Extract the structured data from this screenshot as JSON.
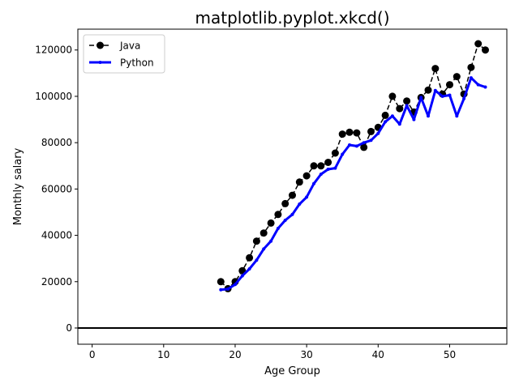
{
  "chart_data": {
    "type": "line",
    "title": "matplotlib.pyplot.xkcd()",
    "xlabel": "Age Group",
    "ylabel": "Monthly salary",
    "xlim": [
      -2,
      58
    ],
    "ylim": [
      -7000,
      129000
    ],
    "xticks": [
      0,
      10,
      20,
      30,
      40,
      50
    ],
    "yticks": [
      0,
      20000,
      40000,
      60000,
      80000,
      100000,
      120000
    ],
    "grid": false,
    "legend_position": "top-left",
    "x": [
      18,
      19,
      20,
      21,
      22,
      23,
      24,
      25,
      26,
      27,
      28,
      29,
      30,
      31,
      32,
      33,
      34,
      35,
      36,
      37,
      38,
      39,
      40,
      41,
      42,
      43,
      44,
      45,
      46,
      47,
      48,
      49,
      50,
      51,
      52,
      53,
      54,
      55
    ],
    "series": [
      {
        "name": "Java",
        "color": "#000000",
        "line_style": "dashed",
        "marker": "circle",
        "values": [
          20000,
          17000,
          20000,
          24700,
          30300,
          37500,
          41000,
          45300,
          49000,
          53700,
          57300,
          63000,
          65700,
          70000,
          70000,
          71500,
          75500,
          83700,
          84500,
          84200,
          78000,
          84800,
          86600,
          91800,
          100000,
          94700,
          98000,
          93200,
          99500,
          102700,
          112000,
          101000,
          105000,
          108500,
          101000,
          112500,
          122700,
          120000
        ]
      },
      {
        "name": "Python",
        "color": "#0000ff",
        "line_style": "solid",
        "marker": "small-dot",
        "values": [
          16500,
          16800,
          18800,
          22500,
          25500,
          29300,
          34100,
          37500,
          43000,
          46500,
          49000,
          53500,
          56500,
          62300,
          66400,
          68500,
          69000,
          75000,
          79000,
          78500,
          80000,
          81000,
          84000,
          89000,
          91500,
          88000,
          96000,
          90000,
          99500,
          91500,
          102500,
          100000,
          100500,
          91500,
          99000,
          108000,
          105000,
          104000
        ]
      },
      {
        "name": "",
        "color": "#000000",
        "line_style": "solid",
        "marker": "none",
        "x": [
          -2,
          58
        ],
        "values": [
          0,
          0
        ]
      }
    ]
  }
}
